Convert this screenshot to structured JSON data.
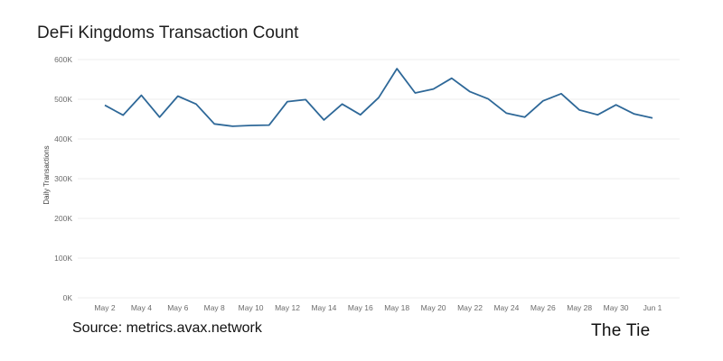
{
  "title": "DeFi Kingdoms Transaction Count",
  "source": "Source: metrics.avax.network",
  "logo_text": "The Tie",
  "chart_data": {
    "type": "line",
    "title": "DeFi Kingdoms Transaction Count",
    "xlabel": "",
    "ylabel": "Daily Transactions",
    "ylim": [
      0,
      600000
    ],
    "yticks": [
      0,
      100000,
      200000,
      300000,
      400000,
      500000,
      600000
    ],
    "ytick_labels": [
      "0K",
      "100K",
      "200K",
      "300K",
      "400K",
      "500K",
      "600K"
    ],
    "xtick_labels": [
      "May 2",
      "May 4",
      "May 6",
      "May 8",
      "May 10",
      "May 12",
      "May 14",
      "May 16",
      "May 18",
      "May 20",
      "May 22",
      "May 24",
      "May 26",
      "May 28",
      "May 30",
      "Jun 1"
    ],
    "grid": true,
    "line_color": "#2e6898",
    "grid_color": "#ececec",
    "series": [
      {
        "x": [
          "May 2",
          "May 3",
          "May 4",
          "May 5",
          "May 6",
          "May 7",
          "May 8",
          "May 9",
          "May 10",
          "May 11",
          "May 12",
          "May 13",
          "May 14",
          "May 15",
          "May 16",
          "May 17",
          "May 18",
          "May 19",
          "May 20",
          "May 21",
          "May 22",
          "May 23",
          "May 24",
          "May 25",
          "May 26",
          "May 27",
          "May 28",
          "May 29",
          "May 30",
          "May 31",
          "Jun 1"
        ],
        "values": [
          485000,
          460000,
          510000,
          455000,
          508000,
          488000,
          438000,
          432000,
          434000,
          435000,
          494000,
          499000,
          448000,
          488000,
          461000,
          504000,
          577000,
          516000,
          526000,
          553000,
          519000,
          501000,
          465000,
          455000,
          496000,
          514000,
          473000,
          461000,
          486000,
          463000,
          453000
        ]
      }
    ]
  }
}
